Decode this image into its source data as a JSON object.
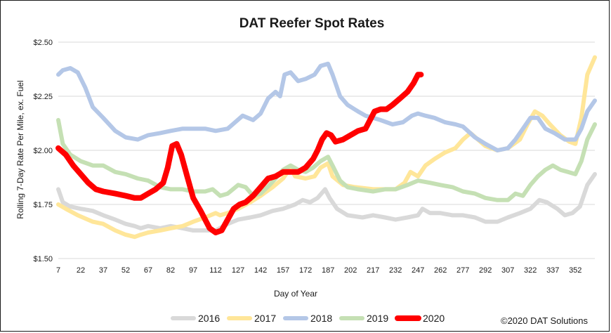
{
  "chart_data": {
    "type": "line",
    "title": "DAT Reefer Spot Rates",
    "xlabel": "Day of Year",
    "ylabel": "Rolling 7-Day Rate Per Mile, ex. Fuel",
    "xlim": [
      7,
      365
    ],
    "ylim": [
      1.5,
      2.5
    ],
    "x_ticks": [
      7,
      22,
      37,
      52,
      67,
      82,
      97,
      112,
      127,
      142,
      157,
      172,
      187,
      202,
      217,
      232,
      247,
      262,
      277,
      292,
      307,
      322,
      337,
      352
    ],
    "y_ticks": [
      {
        "value": 1.5,
        "label": "$1.50"
      },
      {
        "value": 1.75,
        "label": "$1.75"
      },
      {
        "value": 2.0,
        "label": "$2.00"
      },
      {
        "value": 2.25,
        "label": "$2.25"
      },
      {
        "value": 2.5,
        "label": "$2.50"
      }
    ],
    "grid": "horizontal",
    "legend": "bottom",
    "copyright": "©2020 DAT Solutions",
    "series": [
      {
        "name": "2016",
        "color": "#d9d9d9",
        "width": 6,
        "points": [
          [
            7,
            1.82
          ],
          [
            10,
            1.76
          ],
          [
            15,
            1.74
          ],
          [
            22,
            1.73
          ],
          [
            30,
            1.72
          ],
          [
            37,
            1.7
          ],
          [
            45,
            1.68
          ],
          [
            52,
            1.66
          ],
          [
            58,
            1.65
          ],
          [
            62,
            1.64
          ],
          [
            67,
            1.65
          ],
          [
            75,
            1.64
          ],
          [
            82,
            1.65
          ],
          [
            90,
            1.64
          ],
          [
            97,
            1.63
          ],
          [
            105,
            1.63
          ],
          [
            112,
            1.63
          ],
          [
            120,
            1.66
          ],
          [
            127,
            1.68
          ],
          [
            135,
            1.69
          ],
          [
            142,
            1.7
          ],
          [
            150,
            1.72
          ],
          [
            157,
            1.73
          ],
          [
            165,
            1.75
          ],
          [
            170,
            1.77
          ],
          [
            175,
            1.76
          ],
          [
            180,
            1.78
          ],
          [
            185,
            1.82
          ],
          [
            188,
            1.78
          ],
          [
            193,
            1.73
          ],
          [
            200,
            1.7
          ],
          [
            210,
            1.69
          ],
          [
            217,
            1.7
          ],
          [
            225,
            1.69
          ],
          [
            232,
            1.68
          ],
          [
            240,
            1.69
          ],
          [
            247,
            1.7
          ],
          [
            250,
            1.73
          ],
          [
            255,
            1.71
          ],
          [
            262,
            1.71
          ],
          [
            270,
            1.7
          ],
          [
            277,
            1.7
          ],
          [
            285,
            1.69
          ],
          [
            292,
            1.67
          ],
          [
            300,
            1.67
          ],
          [
            307,
            1.69
          ],
          [
            315,
            1.71
          ],
          [
            322,
            1.73
          ],
          [
            328,
            1.77
          ],
          [
            333,
            1.76
          ],
          [
            340,
            1.73
          ],
          [
            345,
            1.7
          ],
          [
            350,
            1.71
          ],
          [
            355,
            1.74
          ],
          [
            360,
            1.84
          ],
          [
            365,
            1.89
          ]
        ]
      },
      {
        "name": "2017",
        "color": "#ffe699",
        "width": 6,
        "points": [
          [
            7,
            1.75
          ],
          [
            12,
            1.73
          ],
          [
            20,
            1.7
          ],
          [
            30,
            1.67
          ],
          [
            37,
            1.66
          ],
          [
            45,
            1.63
          ],
          [
            52,
            1.61
          ],
          [
            58,
            1.6
          ],
          [
            62,
            1.61
          ],
          [
            67,
            1.62
          ],
          [
            75,
            1.63
          ],
          [
            82,
            1.64
          ],
          [
            90,
            1.65
          ],
          [
            97,
            1.67
          ],
          [
            105,
            1.69
          ],
          [
            112,
            1.71
          ],
          [
            115,
            1.7
          ],
          [
            120,
            1.71
          ],
          [
            127,
            1.73
          ],
          [
            135,
            1.76
          ],
          [
            142,
            1.79
          ],
          [
            150,
            1.83
          ],
          [
            157,
            1.87
          ],
          [
            162,
            1.92
          ],
          [
            165,
            1.88
          ],
          [
            172,
            1.87
          ],
          [
            178,
            1.88
          ],
          [
            182,
            1.92
          ],
          [
            187,
            1.94
          ],
          [
            190,
            1.88
          ],
          [
            197,
            1.84
          ],
          [
            205,
            1.83
          ],
          [
            217,
            1.82
          ],
          [
            225,
            1.82
          ],
          [
            232,
            1.82
          ],
          [
            238,
            1.85
          ],
          [
            242,
            1.9
          ],
          [
            247,
            1.88
          ],
          [
            252,
            1.93
          ],
          [
            258,
            1.96
          ],
          [
            265,
            1.99
          ],
          [
            272,
            2.01
          ],
          [
            277,
            2.05
          ],
          [
            282,
            2.08
          ],
          [
            287,
            2.05
          ],
          [
            292,
            2.02
          ],
          [
            300,
            2.0
          ],
          [
            307,
            2.01
          ],
          [
            315,
            2.05
          ],
          [
            320,
            2.12
          ],
          [
            325,
            2.18
          ],
          [
            330,
            2.16
          ],
          [
            335,
            2.12
          ],
          [
            342,
            2.07
          ],
          [
            348,
            2.04
          ],
          [
            352,
            2.03
          ],
          [
            356,
            2.15
          ],
          [
            360,
            2.35
          ],
          [
            365,
            2.43
          ]
        ]
      },
      {
        "name": "2018",
        "color": "#b4c7e7",
        "width": 6,
        "points": [
          [
            7,
            2.35
          ],
          [
            10,
            2.37
          ],
          [
            15,
            2.38
          ],
          [
            20,
            2.36
          ],
          [
            25,
            2.29
          ],
          [
            30,
            2.2
          ],
          [
            37,
            2.15
          ],
          [
            45,
            2.09
          ],
          [
            52,
            2.06
          ],
          [
            60,
            2.05
          ],
          [
            67,
            2.07
          ],
          [
            75,
            2.08
          ],
          [
            82,
            2.09
          ],
          [
            90,
            2.1
          ],
          [
            97,
            2.1
          ],
          [
            105,
            2.1
          ],
          [
            112,
            2.09
          ],
          [
            120,
            2.1
          ],
          [
            125,
            2.13
          ],
          [
            130,
            2.16
          ],
          [
            137,
            2.14
          ],
          [
            142,
            2.17
          ],
          [
            147,
            2.24
          ],
          [
            152,
            2.27
          ],
          [
            155,
            2.25
          ],
          [
            158,
            2.35
          ],
          [
            162,
            2.36
          ],
          [
            167,
            2.32
          ],
          [
            172,
            2.33
          ],
          [
            178,
            2.35
          ],
          [
            182,
            2.39
          ],
          [
            187,
            2.4
          ],
          [
            190,
            2.35
          ],
          [
            195,
            2.25
          ],
          [
            200,
            2.21
          ],
          [
            207,
            2.18
          ],
          [
            212,
            2.16
          ],
          [
            217,
            2.15
          ],
          [
            222,
            2.14
          ],
          [
            230,
            2.12
          ],
          [
            237,
            2.13
          ],
          [
            243,
            2.16
          ],
          [
            247,
            2.17
          ],
          [
            252,
            2.16
          ],
          [
            258,
            2.15
          ],
          [
            265,
            2.13
          ],
          [
            272,
            2.12
          ],
          [
            277,
            2.11
          ],
          [
            285,
            2.06
          ],
          [
            292,
            2.03
          ],
          [
            300,
            2.0
          ],
          [
            307,
            2.01
          ],
          [
            312,
            2.05
          ],
          [
            317,
            2.1
          ],
          [
            322,
            2.15
          ],
          [
            327,
            2.15
          ],
          [
            332,
            2.1
          ],
          [
            338,
            2.08
          ],
          [
            345,
            2.05
          ],
          [
            352,
            2.05
          ],
          [
            356,
            2.1
          ],
          [
            360,
            2.18
          ],
          [
            365,
            2.23
          ]
        ]
      },
      {
        "name": "2019",
        "color": "#c5e0b4",
        "width": 6,
        "points": [
          [
            7,
            2.14
          ],
          [
            10,
            2.03
          ],
          [
            15,
            1.98
          ],
          [
            22,
            1.95
          ],
          [
            30,
            1.93
          ],
          [
            37,
            1.93
          ],
          [
            45,
            1.9
          ],
          [
            52,
            1.89
          ],
          [
            60,
            1.87
          ],
          [
            67,
            1.86
          ],
          [
            75,
            1.83
          ],
          [
            82,
            1.82
          ],
          [
            90,
            1.82
          ],
          [
            97,
            1.81
          ],
          [
            105,
            1.81
          ],
          [
            110,
            1.82
          ],
          [
            115,
            1.79
          ],
          [
            120,
            1.8
          ],
          [
            127,
            1.84
          ],
          [
            132,
            1.83
          ],
          [
            137,
            1.79
          ],
          [
            142,
            1.8
          ],
          [
            148,
            1.84
          ],
          [
            152,
            1.87
          ],
          [
            157,
            1.91
          ],
          [
            162,
            1.93
          ],
          [
            167,
            1.91
          ],
          [
            172,
            1.9
          ],
          [
            177,
            1.92
          ],
          [
            182,
            1.95
          ],
          [
            187,
            1.97
          ],
          [
            190,
            1.93
          ],
          [
            195,
            1.86
          ],
          [
            200,
            1.83
          ],
          [
            207,
            1.82
          ],
          [
            217,
            1.81
          ],
          [
            225,
            1.82
          ],
          [
            232,
            1.82
          ],
          [
            240,
            1.84
          ],
          [
            247,
            1.86
          ],
          [
            255,
            1.85
          ],
          [
            262,
            1.84
          ],
          [
            270,
            1.83
          ],
          [
            277,
            1.81
          ],
          [
            285,
            1.8
          ],
          [
            292,
            1.78
          ],
          [
            300,
            1.77
          ],
          [
            307,
            1.77
          ],
          [
            312,
            1.8
          ],
          [
            317,
            1.79
          ],
          [
            322,
            1.84
          ],
          [
            327,
            1.88
          ],
          [
            332,
            1.91
          ],
          [
            337,
            1.93
          ],
          [
            342,
            1.91
          ],
          [
            347,
            1.9
          ],
          [
            352,
            1.89
          ],
          [
            356,
            1.95
          ],
          [
            360,
            2.05
          ],
          [
            365,
            2.12
          ]
        ]
      },
      {
        "name": "2020",
        "color": "#ff0000",
        "width": 8,
        "points": [
          [
            7,
            2.01
          ],
          [
            12,
            1.98
          ],
          [
            17,
            1.93
          ],
          [
            22,
            1.89
          ],
          [
            27,
            1.85
          ],
          [
            32,
            1.82
          ],
          [
            37,
            1.81
          ],
          [
            45,
            1.8
          ],
          [
            52,
            1.79
          ],
          [
            58,
            1.78
          ],
          [
            62,
            1.78
          ],
          [
            67,
            1.8
          ],
          [
            72,
            1.82
          ],
          [
            77,
            1.85
          ],
          [
            80,
            1.92
          ],
          [
            83,
            2.02
          ],
          [
            86,
            2.03
          ],
          [
            89,
            1.98
          ],
          [
            93,
            1.88
          ],
          [
            97,
            1.78
          ],
          [
            102,
            1.72
          ],
          [
            105,
            1.68
          ],
          [
            108,
            1.64
          ],
          [
            112,
            1.62
          ],
          [
            116,
            1.63
          ],
          [
            120,
            1.68
          ],
          [
            124,
            1.73
          ],
          [
            128,
            1.75
          ],
          [
            132,
            1.76
          ],
          [
            137,
            1.79
          ],
          [
            142,
            1.83
          ],
          [
            147,
            1.87
          ],
          [
            152,
            1.88
          ],
          [
            157,
            1.9
          ],
          [
            162,
            1.9
          ],
          [
            167,
            1.9
          ],
          [
            172,
            1.92
          ],
          [
            177,
            1.96
          ],
          [
            180,
            2.0
          ],
          [
            183,
            2.05
          ],
          [
            186,
            2.08
          ],
          [
            189,
            2.07
          ],
          [
            192,
            2.04
          ],
          [
            197,
            2.05
          ],
          [
            202,
            2.07
          ],
          [
            207,
            2.09
          ],
          [
            212,
            2.1
          ],
          [
            215,
            2.14
          ],
          [
            218,
            2.18
          ],
          [
            222,
            2.19
          ],
          [
            226,
            2.19
          ],
          [
            230,
            2.21
          ],
          [
            235,
            2.24
          ],
          [
            240,
            2.27
          ],
          [
            244,
            2.31
          ],
          [
            247,
            2.35
          ],
          [
            249,
            2.35
          ]
        ]
      }
    ]
  }
}
